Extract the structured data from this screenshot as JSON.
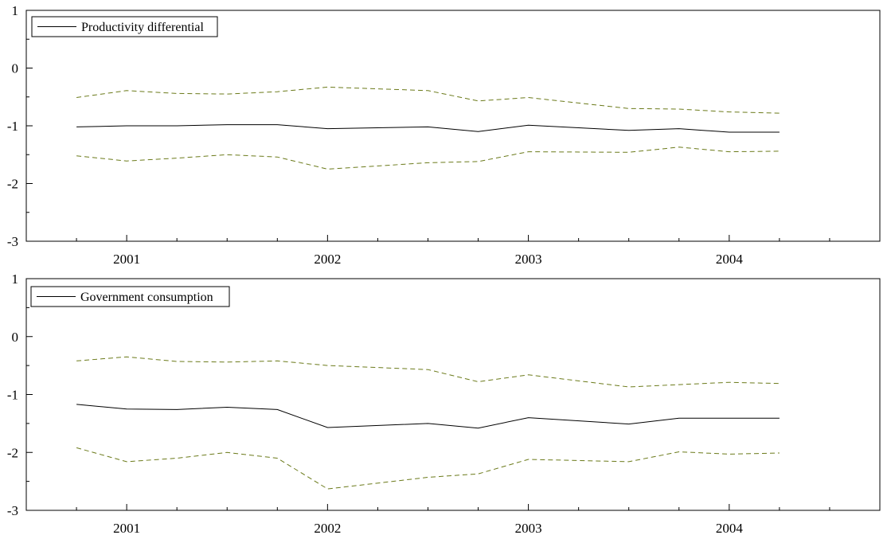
{
  "chart_data": [
    {
      "type": "line",
      "x": [
        2000.75,
        2001.0,
        2001.25,
        2001.5,
        2001.75,
        2002.0,
        2002.5,
        2002.75,
        2003.0,
        2003.5,
        2003.75,
        2004.0,
        2004.25
      ],
      "x_ticks": [
        2001,
        2002,
        2003,
        2004
      ],
      "x_tick_labels": [
        "2001",
        "2002",
        "2003",
        "2004"
      ],
      "xlim": [
        2000.5,
        2004.75
      ],
      "ylim": [
        -3,
        1
      ],
      "y_ticks": [
        1,
        0,
        -1,
        -2,
        -3
      ],
      "y_tick_labels": [
        "1",
        "0",
        "-1",
        "-2",
        "-3"
      ],
      "legend_position": "top-left",
      "legend_label": "Productivity differential",
      "series": [
        {
          "name": "Productivity differential",
          "role": "estimate",
          "color": "#000000",
          "style": "solid",
          "values": [
            -1.02,
            -1.0,
            -1.0,
            -0.98,
            -0.98,
            -1.05,
            -1.02,
            -1.1,
            -0.99,
            -1.08,
            -1.05,
            -1.11,
            -1.11
          ]
        },
        {
          "role": "upper band",
          "color": "#6b7a1a",
          "style": "dashed",
          "values": [
            -0.51,
            -0.39,
            -0.44,
            -0.45,
            -0.41,
            -0.33,
            -0.39,
            -0.57,
            -0.51,
            -0.7,
            -0.71,
            -0.76,
            -0.78
          ]
        },
        {
          "role": "lower band",
          "color": "#6b7a1a",
          "style": "dashed",
          "values": [
            -1.52,
            -1.61,
            -1.56,
            -1.5,
            -1.54,
            -1.75,
            -1.64,
            -1.62,
            -1.45,
            -1.46,
            -1.37,
            -1.45,
            -1.44
          ]
        }
      ]
    },
    {
      "type": "line",
      "x": [
        2000.75,
        2001.0,
        2001.25,
        2001.5,
        2001.75,
        2002.0,
        2002.5,
        2002.75,
        2003.0,
        2003.5,
        2003.75,
        2004.0,
        2004.25
      ],
      "x_ticks": [
        2001,
        2002,
        2003,
        2004
      ],
      "x_tick_labels": [
        "2001",
        "2002",
        "2003",
        "2004"
      ],
      "xlim": [
        2000.5,
        2004.75
      ],
      "ylim": [
        -3,
        1
      ],
      "y_ticks": [
        1,
        0,
        -1,
        -2,
        -3
      ],
      "y_tick_labels": [
        "1",
        "0",
        "-1",
        "-2",
        "-3"
      ],
      "legend_position": "top-left",
      "legend_label": "Government consumption",
      "series": [
        {
          "name": "Government consumption",
          "role": "estimate",
          "color": "#000000",
          "style": "solid",
          "values": [
            -1.17,
            -1.25,
            -1.26,
            -1.22,
            -1.26,
            -1.57,
            -1.5,
            -1.58,
            -1.4,
            -1.51,
            -1.41,
            -1.41,
            -1.41
          ]
        },
        {
          "role": "upper band",
          "color": "#6b7a1a",
          "style": "dashed",
          "values": [
            -0.42,
            -0.35,
            -0.43,
            -0.44,
            -0.42,
            -0.5,
            -0.57,
            -0.78,
            -0.66,
            -0.87,
            -0.83,
            -0.79,
            -0.81
          ]
        },
        {
          "role": "lower band",
          "color": "#6b7a1a",
          "style": "dashed",
          "values": [
            -1.92,
            -2.16,
            -2.1,
            -2.0,
            -2.1,
            -2.63,
            -2.43,
            -2.37,
            -2.12,
            -2.16,
            -1.99,
            -2.03,
            -2.01
          ]
        }
      ]
    }
  ]
}
